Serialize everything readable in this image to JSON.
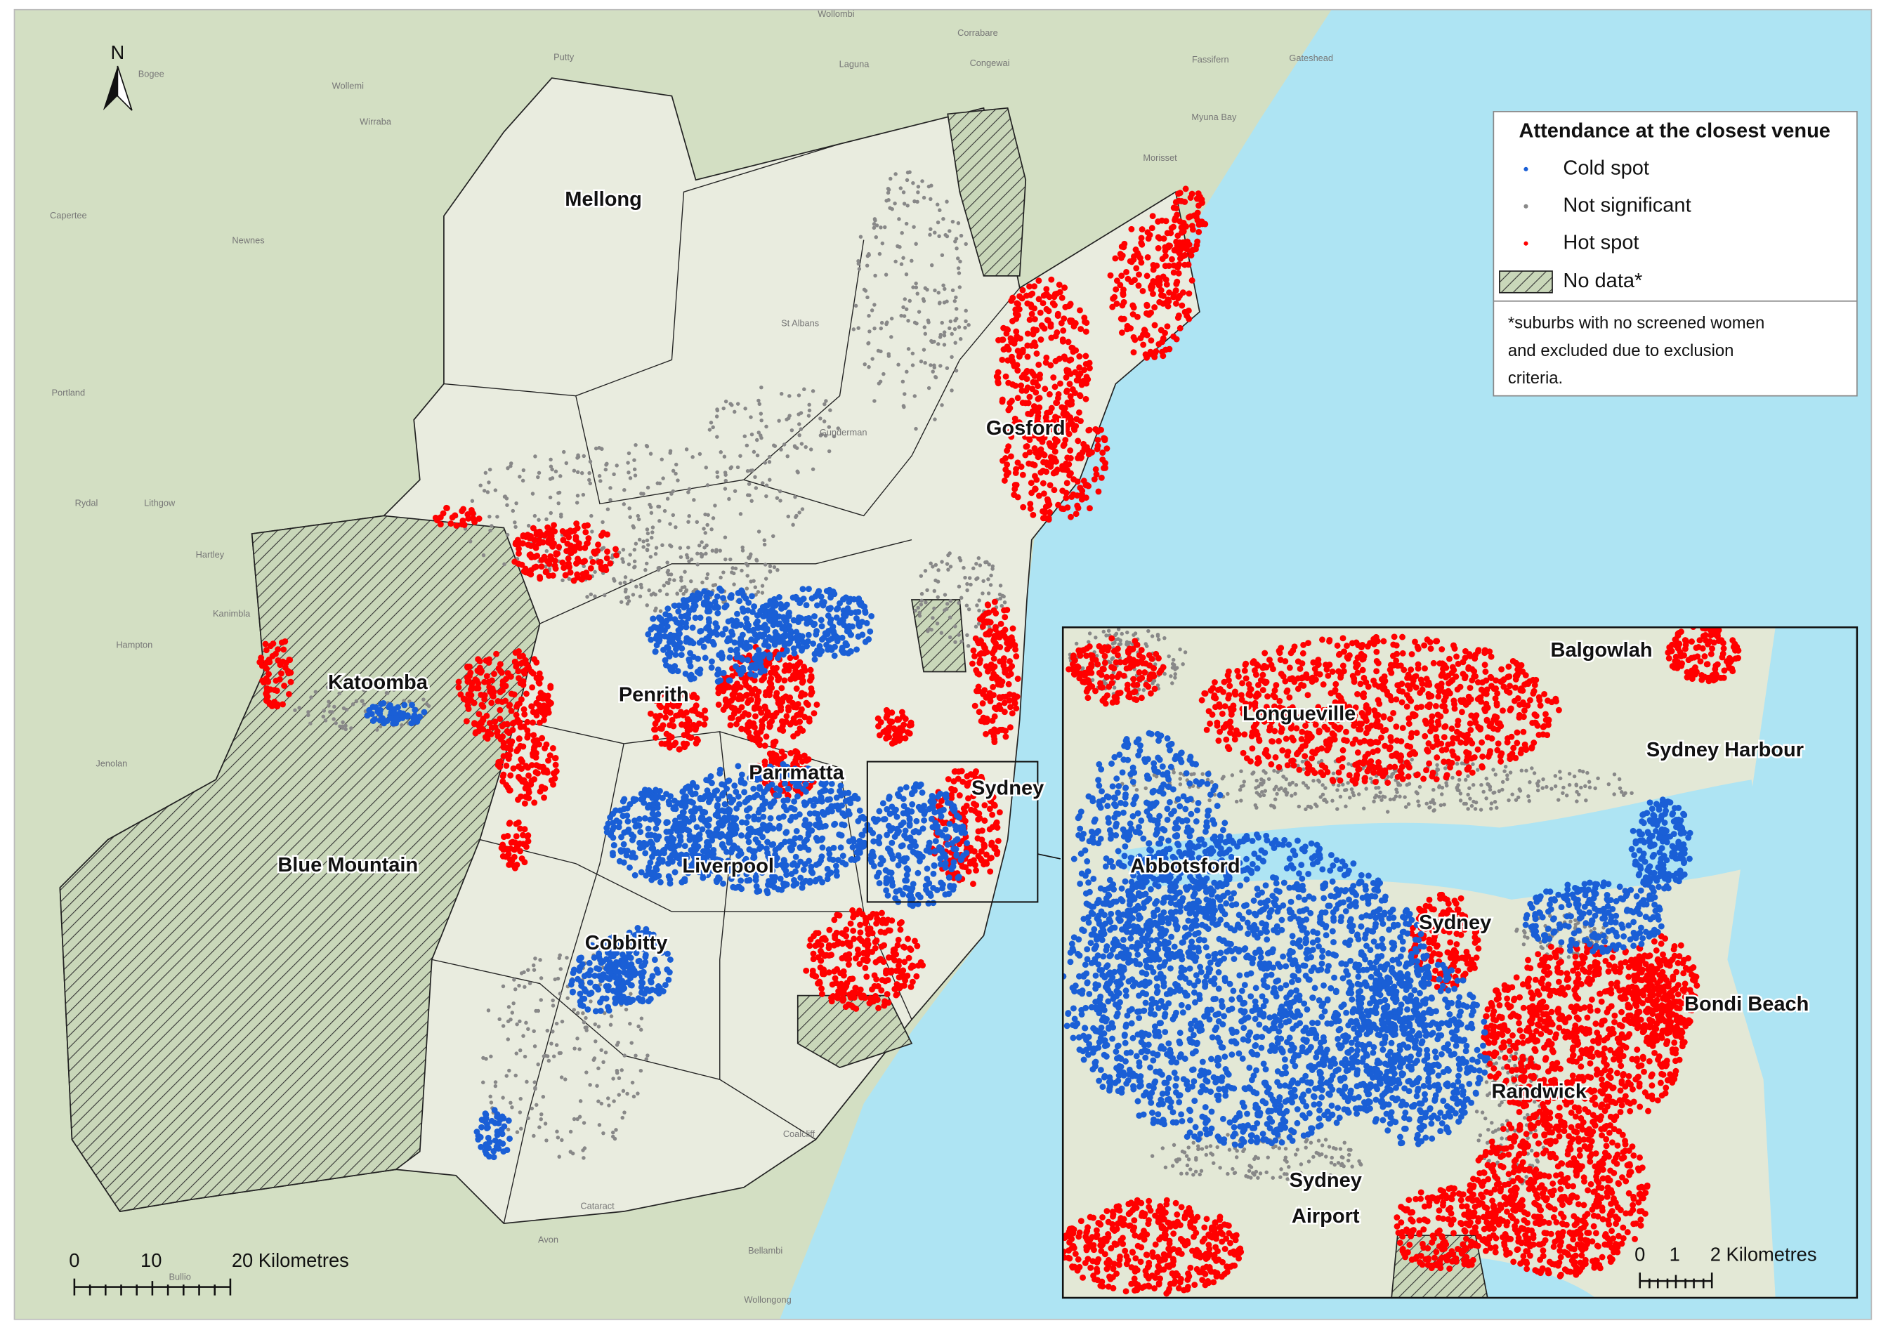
{
  "map": {
    "north": "N",
    "labels": [
      "Mellong",
      "Gosford",
      "Katoomba",
      "Penrith",
      "Parrmatta",
      "Sydney",
      "Blue Mountain",
      "Liverpool",
      "Cobbitty"
    ],
    "basemap_labels": [
      "Bogee",
      "Wollemi",
      "Putty",
      "Wirraba",
      "Capertee",
      "Newnes",
      "Portland",
      "Rydal",
      "Lithgow",
      "Hartley",
      "Hampton",
      "Kanimbla",
      "Jenolan",
      "Bullio",
      "Cataract",
      "Avon",
      "Bellambi",
      "Wollongong",
      "Coalcliff",
      "Myuna Bay",
      "Morisset",
      "Gateshead",
      "Fassifern",
      "Laguna",
      "Wollombi",
      "Corrabare",
      "Congewai",
      "St Albans",
      "Gunderman"
    ],
    "scale": {
      "labels": [
        "0",
        "10",
        "20 Kilometres"
      ]
    }
  },
  "inset": {
    "labels": [
      "Balgowlah",
      "Longueville",
      "Sydney Harbour",
      "Abbotsford",
      "Sydney",
      "Bondi Beach",
      "Randwick",
      [
        "Sydney",
        "Airport"
      ]
    ],
    "scale": {
      "labels": [
        "0",
        "1",
        "2 Kilometres"
      ]
    }
  },
  "legend": {
    "title": "Attendance at the closest venue",
    "items": [
      "Cold spot",
      "Not significant",
      "Hot spot",
      "No data*"
    ],
    "note": [
      "*suburbs with no screened women",
      "and excluded due to exclusion",
      "criteria."
    ]
  }
}
